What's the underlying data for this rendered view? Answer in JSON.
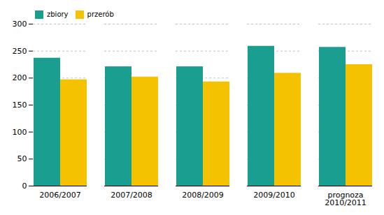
{
  "chart_data": {
    "type": "bar",
    "categories": [
      "2006/2007",
      "2007/2008",
      "2008/2009",
      "2009/2010",
      "prognoza\n2010/2011"
    ],
    "series": [
      {
        "name": "zbiory",
        "color": "#1a9e8f",
        "values": [
          237,
          221,
          221,
          259,
          257
        ]
      },
      {
        "name": "przerób",
        "color": "#f5c200",
        "values": [
          197,
          202,
          193,
          209,
          225
        ]
      }
    ],
    "ylim": [
      0,
      300
    ],
    "yticks": [
      0,
      50,
      100,
      150,
      200,
      250,
      300
    ],
    "grid": true,
    "legend": "upper left"
  }
}
